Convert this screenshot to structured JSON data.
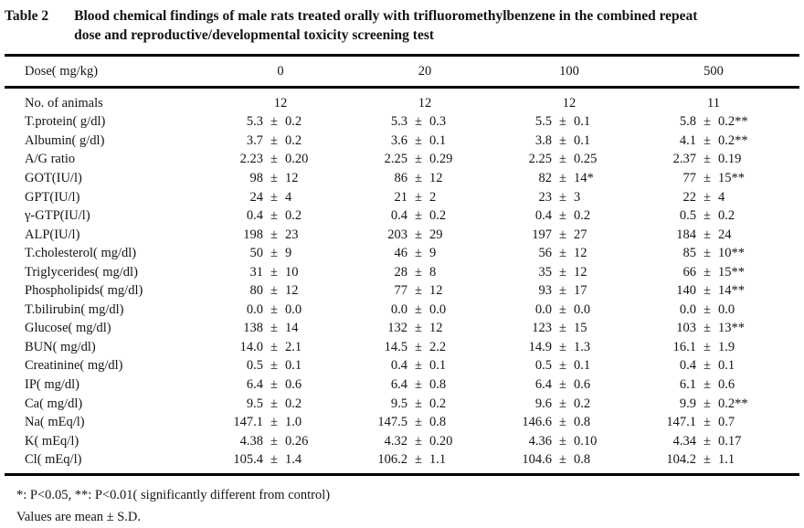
{
  "title": {
    "num": "Table 2",
    "lines": [
      "Blood chemical findings of male rats treated orally with trifluoromethylbenzene in the combined repeat",
      "dose and reproductive/developmental toxicity screening test"
    ]
  },
  "table": {
    "header": {
      "label": "Dose( mg/kg)",
      "doses": [
        "0",
        "20",
        "100",
        "500"
      ]
    },
    "symbols": {
      "pm": "±"
    },
    "rows": [
      {
        "label": "No. of animals",
        "values": [
          "12",
          "12",
          "12",
          "11"
        ]
      },
      {
        "label": "T.protein( g/dl)",
        "values": [
          {
            "m": "5.3",
            "s": "0.2"
          },
          {
            "m": "5.3",
            "s": "0.3"
          },
          {
            "m": "5.5",
            "s": "0.1"
          },
          {
            "m": "5.8",
            "s": "0.2",
            "mark": "**"
          }
        ]
      },
      {
        "label": "Albumin( g/dl)",
        "values": [
          {
            "m": "3.7",
            "s": "0.2"
          },
          {
            "m": "3.6",
            "s": "0.1"
          },
          {
            "m": "3.8",
            "s": "0.1"
          },
          {
            "m": "4.1",
            "s": "0.2",
            "mark": "**"
          }
        ]
      },
      {
        "label": "A/G ratio",
        "values": [
          {
            "m": "2.23",
            "s": "0.20"
          },
          {
            "m": "2.25",
            "s": "0.29"
          },
          {
            "m": "2.25",
            "s": "0.25"
          },
          {
            "m": "2.37",
            "s": "0.19"
          }
        ]
      },
      {
        "label": "GOT(IU/l)",
        "values": [
          {
            "m": "98",
            "s": "12"
          },
          {
            "m": "86",
            "s": "12"
          },
          {
            "m": "82",
            "s": "14",
            "mark": "*"
          },
          {
            "m": "77",
            "s": "15",
            "mark": "**"
          }
        ]
      },
      {
        "label": "GPT(IU/l)",
        "values": [
          {
            "m": "24",
            "s": "4"
          },
          {
            "m": "21",
            "s": "2"
          },
          {
            "m": "23",
            "s": "3"
          },
          {
            "m": "22",
            "s": "4"
          }
        ]
      },
      {
        "label": "γ-GTP(IU/l)",
        "values": [
          {
            "m": "0.4",
            "s": "0.2"
          },
          {
            "m": "0.4",
            "s": "0.2"
          },
          {
            "m": "0.4",
            "s": "0.2"
          },
          {
            "m": "0.5",
            "s": "0.2"
          }
        ]
      },
      {
        "label": "ALP(IU/l)",
        "values": [
          {
            "m": "198",
            "s": "23"
          },
          {
            "m": "203",
            "s": "29"
          },
          {
            "m": "197",
            "s": "27"
          },
          {
            "m": "184",
            "s": "24"
          }
        ]
      },
      {
        "label": "T.cholesterol( mg/dl)",
        "values": [
          {
            "m": "50",
            "s": "9"
          },
          {
            "m": "46",
            "s": "9"
          },
          {
            "m": "56",
            "s": "12"
          },
          {
            "m": "85",
            "s": "10",
            "mark": "**"
          }
        ]
      },
      {
        "label": "Triglycerides( mg/dl)",
        "values": [
          {
            "m": "31",
            "s": "10"
          },
          {
            "m": "28",
            "s": "8"
          },
          {
            "m": "35",
            "s": "12"
          },
          {
            "m": "66",
            "s": "15",
            "mark": "**"
          }
        ]
      },
      {
        "label": "Phospholipids( mg/dl)",
        "values": [
          {
            "m": "80",
            "s": "12"
          },
          {
            "m": "77",
            "s": "12"
          },
          {
            "m": "93",
            "s": "17"
          },
          {
            "m": "140",
            "s": "14",
            "mark": "**"
          }
        ]
      },
      {
        "label": "T.bilirubin( mg/dl)",
        "values": [
          {
            "m": "0.0",
            "s": "0.0"
          },
          {
            "m": "0.0",
            "s": "0.0"
          },
          {
            "m": "0.0",
            "s": "0.0"
          },
          {
            "m": "0.0",
            "s": "0.0"
          }
        ]
      },
      {
        "label": "Glucose( mg/dl)",
        "values": [
          {
            "m": "138",
            "s": "14"
          },
          {
            "m": "132",
            "s": "12"
          },
          {
            "m": "123",
            "s": "15"
          },
          {
            "m": "103",
            "s": "13",
            "mark": "**"
          }
        ]
      },
      {
        "label": "BUN( mg/dl)",
        "values": [
          {
            "m": "14.0",
            "s": "2.1"
          },
          {
            "m": "14.5",
            "s": "2.2"
          },
          {
            "m": "14.9",
            "s": "1.3"
          },
          {
            "m": "16.1",
            "s": "1.9"
          }
        ]
      },
      {
        "label": "Creatinine( mg/dl)",
        "values": [
          {
            "m": "0.5",
            "s": "0.1"
          },
          {
            "m": "0.4",
            "s": "0.1"
          },
          {
            "m": "0.5",
            "s": "0.1"
          },
          {
            "m": "0.4",
            "s": "0.1"
          }
        ]
      },
      {
        "label": "IP( mg/dl)",
        "values": [
          {
            "m": "6.4",
            "s": "0.6"
          },
          {
            "m": "6.4",
            "s": "0.8"
          },
          {
            "m": "6.4",
            "s": "0.6"
          },
          {
            "m": "6.1",
            "s": "0.6"
          }
        ]
      },
      {
        "label": "Ca( mg/dl)",
        "values": [
          {
            "m": "9.5",
            "s": "0.2"
          },
          {
            "m": "9.5",
            "s": "0.2"
          },
          {
            "m": "9.6",
            "s": "0.2"
          },
          {
            "m": "9.9",
            "s": "0.2",
            "mark": "**"
          }
        ]
      },
      {
        "label": "Na( mEq/l)",
        "values": [
          {
            "m": "147.1",
            "s": "1.0"
          },
          {
            "m": "147.5",
            "s": "0.8"
          },
          {
            "m": "146.6",
            "s": "0.8"
          },
          {
            "m": "147.1",
            "s": "0.7"
          }
        ]
      },
      {
        "label": "K( mEq/l)",
        "values": [
          {
            "m": "4.38",
            "s": "0.26"
          },
          {
            "m": "4.32",
            "s": "0.20"
          },
          {
            "m": "4.36",
            "s": "0.10"
          },
          {
            "m": "4.34",
            "s": "0.17"
          }
        ]
      },
      {
        "label": "Cl( mEq/l)",
        "values": [
          {
            "m": "105.4",
            "s": "1.4"
          },
          {
            "m": "106.2",
            "s": "1.1"
          },
          {
            "m": "104.6",
            "s": "0.8"
          },
          {
            "m": "104.2",
            "s": "1.1"
          }
        ]
      }
    ]
  },
  "footnotes": [
    "*:  P<0.05, **:  P<0.01( significantly different from control)",
    "Values are mean ± S.D."
  ]
}
